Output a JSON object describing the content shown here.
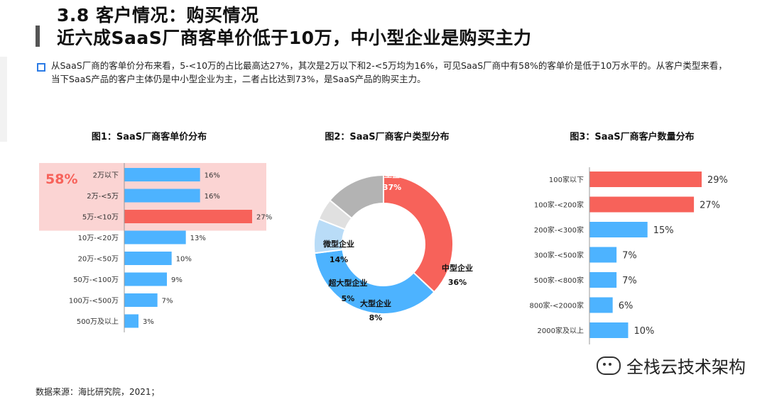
{
  "header": {
    "title_line1": "3.8 客户情况：购买情况",
    "title_line2": "近六成SaaS厂商客单价低于10万，中小型企业是购买主力"
  },
  "lead": "从SaaS厂商的客单价分布来看，5-<10万的占比最高达27%，其次是2万以下和2-<5万均为16%，可见SaaS厂商中有58%的客单价是低于10万水平的。从客户类型来看，当下SaaS产品的客户主体仍是中小型企业为主，二者占比达到73%，是SaaS产品的购买主力。",
  "footer": {
    "source": "数据来源：海比研究院，2021；",
    "watermark": "全栈云技术架构"
  },
  "colors": {
    "red": "#f7625a",
    "blue": "#4db3ff",
    "gray": "#b3b3b3",
    "lightblue": "#b9dcf7",
    "highlight": "#fbd4d3",
    "highlight_text": "#f7625a"
  },
  "chart_data": [
    {
      "type": "bar",
      "orientation": "horizontal",
      "title": "图1：SaaS厂商客单价分布",
      "categories": [
        "2万以下",
        "2万-<5万",
        "5万-<10万",
        "10万-<20万",
        "20万-<50万",
        "50万-<100万",
        "100万-<500万",
        "500万及以上"
      ],
      "values": [
        16,
        16,
        27,
        13,
        10,
        9,
        7,
        3
      ],
      "value_labels": [
        "16%",
        "16%",
        "27%",
        "13%",
        "10%",
        "9%",
        "7%",
        "3%"
      ],
      "highlight_label": "58%",
      "highlight_count": 3,
      "colors": [
        "#4db3ff",
        "#4db3ff",
        "#f7625a",
        "#4db3ff",
        "#4db3ff",
        "#4db3ff",
        "#4db3ff",
        "#4db3ff"
      ]
    },
    {
      "type": "pie",
      "donut": true,
      "title": "图2：SaaS厂商客户类型分布",
      "slices": [
        {
          "label": "小型企业",
          "value": 37,
          "value_label": "37%",
          "color": "#f7625a"
        },
        {
          "label": "中型企业",
          "value": 36,
          "value_label": "36%",
          "color": "#4db3ff"
        },
        {
          "label": "大型企业",
          "value": 8,
          "value_label": "8%",
          "color": "#b9dcf7"
        },
        {
          "label": "超大型企业",
          "value": 5,
          "value_label": "5%",
          "color": "#e0e0e0"
        },
        {
          "label": "微型企业",
          "value": 14,
          "value_label": "14%",
          "color": "#b3b3b3"
        }
      ]
    },
    {
      "type": "bar",
      "orientation": "horizontal",
      "title": "图3：SaaS厂商客户数量分布",
      "categories": [
        "100家以下",
        "100家-<200家",
        "200家-<300家",
        "300家-<500家",
        "500家-<800家",
        "800家-<2000家",
        "2000家及以上"
      ],
      "values": [
        29,
        27,
        15,
        7,
        7,
        6,
        10
      ],
      "value_labels": [
        "29%",
        "27%",
        "15%",
        "7%",
        "7%",
        "6%",
        "10%"
      ],
      "colors": [
        "#f7625a",
        "#f7625a",
        "#4db3ff",
        "#4db3ff",
        "#4db3ff",
        "#4db3ff",
        "#4db3ff"
      ]
    }
  ]
}
